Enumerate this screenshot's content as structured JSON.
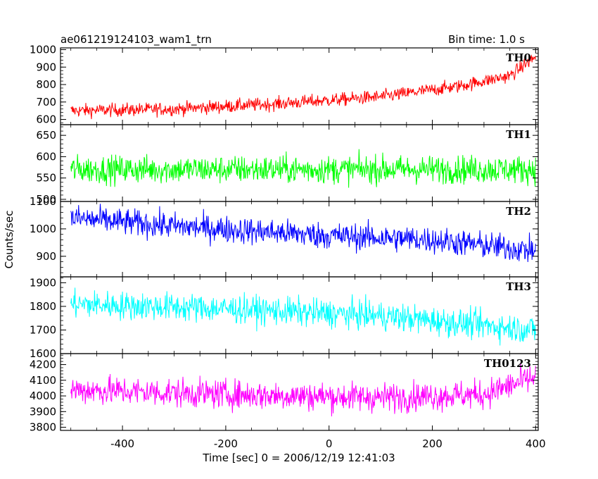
{
  "header": {
    "title": "ae061219124103_wam1_trn",
    "bin_time": "Bin time: 1.0 s"
  },
  "axes": {
    "xlabel": "Time [sec] 0 = 2006/12/19 12:41:03",
    "ylabel": "Counts/sec"
  },
  "chart_data": {
    "type": "line",
    "xlim": [
      -520,
      405
    ],
    "x_ticks": [
      -400,
      -200,
      0,
      200,
      400
    ],
    "x_data_range": [
      -500,
      400
    ],
    "bin_seconds": 1.0,
    "panels": [
      {
        "name": "TH0",
        "color": "#ff0000",
        "ylim": [
          570,
          1010
        ],
        "y_ticks": [
          600,
          700,
          800,
          900,
          1000
        ],
        "trend_points": [
          [
            -500,
            650
          ],
          [
            -300,
            660
          ],
          [
            -100,
            690
          ],
          [
            100,
            730
          ],
          [
            250,
            790
          ],
          [
            350,
            850
          ],
          [
            400,
            960
          ]
        ],
        "noise_amplitude": 35
      },
      {
        "name": "TH1",
        "color": "#00ff00",
        "ylim": [
          495,
          675
        ],
        "y_ticks": [
          500,
          550,
          600,
          650
        ],
        "trend_points": [
          [
            -500,
            570
          ],
          [
            400,
            570
          ]
        ],
        "noise_amplitude": 30
      },
      {
        "name": "TH2",
        "color": "#0000ff",
        "ylim": [
          825,
          1100
        ],
        "y_ticks": [
          900,
          1000,
          1100
        ],
        "trend_points": [
          [
            -500,
            1040
          ],
          [
            -300,
            1010
          ],
          [
            0,
            975
          ],
          [
            200,
            960
          ],
          [
            400,
            920
          ]
        ],
        "noise_amplitude": 45
      },
      {
        "name": "TH3",
        "color": "#00ffff",
        "ylim": [
          1600,
          1925
        ],
        "y_ticks": [
          1600,
          1700,
          1800,
          1900
        ],
        "trend_points": [
          [
            -500,
            1810
          ],
          [
            -200,
            1790
          ],
          [
            100,
            1760
          ],
          [
            400,
            1700
          ]
        ],
        "noise_amplitude": 55
      },
      {
        "name": "TH0123",
        "color": "#ff00ff",
        "ylim": [
          3780,
          4270
        ],
        "y_ticks": [
          3800,
          3900,
          4000,
          4100,
          4200
        ],
        "trend_points": [
          [
            -500,
            4040
          ],
          [
            -200,
            4010
          ],
          [
            100,
            3990
          ],
          [
            300,
            4010
          ],
          [
            400,
            4120
          ]
        ],
        "noise_amplitude": 85
      }
    ]
  }
}
